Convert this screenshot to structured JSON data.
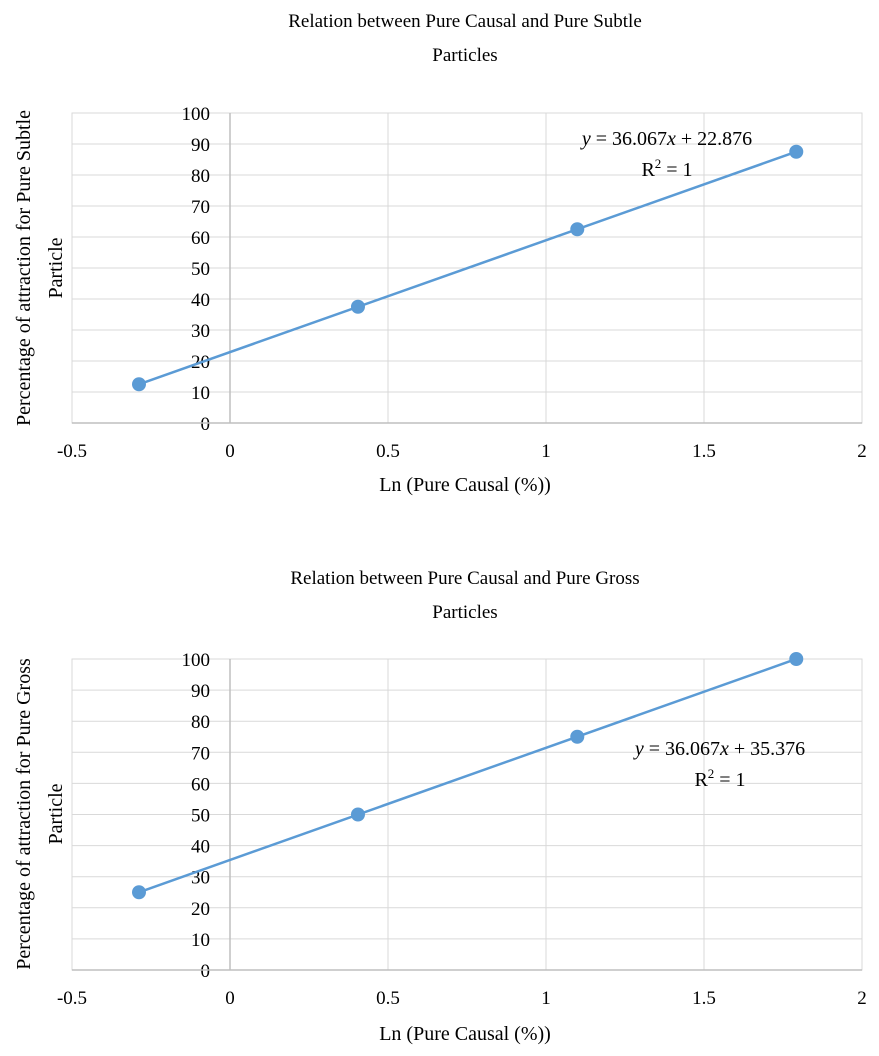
{
  "chart_data": [
    {
      "type": "scatter",
      "title": [
        "Relation between Pure Causal and Pure Subtle",
        "Particles"
      ],
      "xlabel": "Ln (Pure Causal (%))",
      "ylabel": [
        "Percentage of attraction for Pure Subtle",
        "Particle"
      ],
      "xlim": [
        -0.5,
        2
      ],
      "ylim": [
        0,
        100
      ],
      "x_ticks": [
        "-0.5",
        "0",
        "0.5",
        "1",
        "1.5",
        "2"
      ],
      "y_ticks": [
        "0",
        "10",
        "20",
        "30",
        "40",
        "50",
        "60",
        "70",
        "80",
        "90",
        "100"
      ],
      "grid": true,
      "series": [
        {
          "x": [
            -0.288,
            0.405,
            1.099,
            1.792
          ],
          "y": [
            12.5,
            37.5,
            62.5,
            87.5
          ],
          "color": "#5b9bd5"
        }
      ],
      "trendline": {
        "slope": 36.067,
        "intercept": 22.876
      },
      "equation": "y = 36.067x + 22.876",
      "r_squared": "R² = 1"
    },
    {
      "type": "scatter",
      "title": [
        "Relation between Pure Causal and Pure Gross",
        "Particles"
      ],
      "xlabel": "Ln (Pure Causal (%))",
      "ylabel": [
        "Percentage of attraction for Pure Gross",
        "Particle"
      ],
      "xlim": [
        -0.5,
        2
      ],
      "ylim": [
        0,
        100
      ],
      "x_ticks": [
        "-0.5",
        "0",
        "0.5",
        "1",
        "1.5",
        "2"
      ],
      "y_ticks": [
        "0",
        "10",
        "20",
        "30",
        "40",
        "50",
        "60",
        "70",
        "80",
        "90",
        "100"
      ],
      "grid": true,
      "series": [
        {
          "x": [
            -0.288,
            0.405,
            1.099,
            1.792
          ],
          "y": [
            25,
            50,
            75,
            100
          ],
          "color": "#5b9bd5"
        }
      ],
      "trendline": {
        "slope": 36.067,
        "intercept": 35.376
      },
      "equation": "y = 36.067x + 35.376",
      "r_squared": "R² = 1"
    }
  ]
}
